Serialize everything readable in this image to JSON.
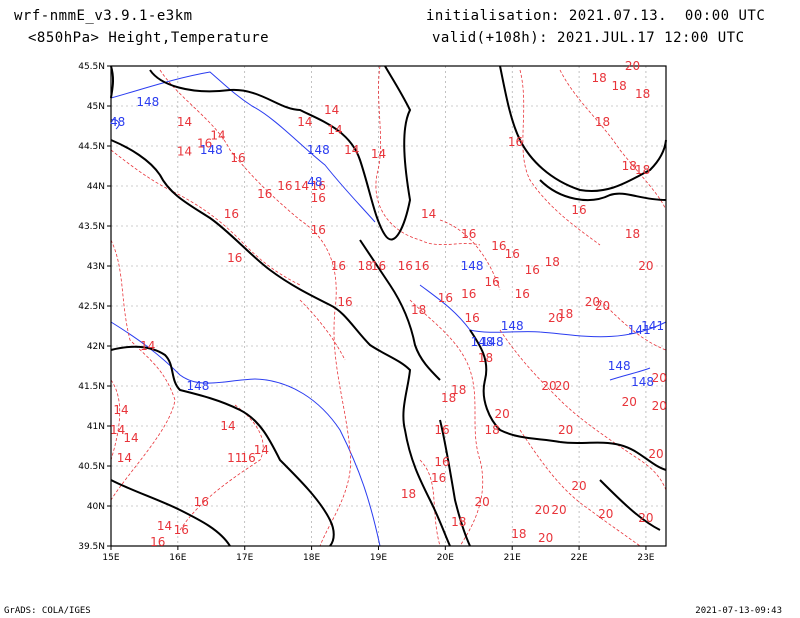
{
  "header": {
    "model": "wrf-nmmE_v3.9.1-e3km",
    "field": "<850hPa> Height,Temperature",
    "init": "initialisation: 2021.07.13.  00:00 UTC",
    "valid": "valid(+108h): 2021.JUL.17 12:00 UTC"
  },
  "footer": {
    "left": "GrADS: COLA/IGES",
    "right": "2021-07-13-09:43"
  },
  "axes": {
    "lat_labels": [
      "45.5N",
      "45N",
      "44.5N",
      "44N",
      "43.5N",
      "43N",
      "42.5N",
      "42N",
      "41.5N",
      "41N",
      "40.5N",
      "40N",
      "39.5N"
    ],
    "lon_labels": [
      "15E",
      "16E",
      "17E",
      "18E",
      "19E",
      "20E",
      "21E",
      "22E",
      "23E"
    ]
  },
  "colors": {
    "temperature": "#e8343a",
    "height": "#2a3cf0",
    "coastline": "#000000",
    "grid": "#9a9a9a"
  },
  "contour_labels": {
    "temperature": [
      {
        "t": "14",
        "lon": 16.1,
        "lat": 44.75
      },
      {
        "t": "14",
        "lon": 16.6,
        "lat": 44.58
      },
      {
        "t": "16",
        "lon": 16.4,
        "lat": 44.48
      },
      {
        "t": "14",
        "lon": 16.1,
        "lat": 44.38
      },
      {
        "t": "14",
        "lon": 17.9,
        "lat": 44.75
      },
      {
        "t": "14",
        "lon": 18.3,
        "lat": 44.9
      },
      {
        "t": "14",
        "lon": 18.35,
        "lat": 44.65
      },
      {
        "t": "16",
        "lon": 16.9,
        "lat": 44.3
      },
      {
        "t": "16",
        "lon": 17.6,
        "lat": 43.95
      },
      {
        "t": "14",
        "lon": 17.85,
        "lat": 43.95
      },
      {
        "t": "16",
        "lon": 18.1,
        "lat": 43.8
      },
      {
        "t": "16",
        "lon": 17.3,
        "lat": 43.85
      },
      {
        "t": "16",
        "lon": 18.1,
        "lat": 43.95
      },
      {
        "t": "14",
        "lon": 18.6,
        "lat": 44.4
      },
      {
        "t": "14",
        "lon": 19.0,
        "lat": 44.35
      },
      {
        "t": "16",
        "lon": 16.8,
        "lat": 43.6
      },
      {
        "t": "16",
        "lon": 18.1,
        "lat": 43.4
      },
      {
        "t": "16",
        "lon": 16.85,
        "lat": 43.05
      },
      {
        "t": "16",
        "lon": 18.4,
        "lat": 42.95
      },
      {
        "t": "18",
        "lon": 18.8,
        "lat": 42.95
      },
      {
        "t": "16",
        "lon": 19.0,
        "lat": 42.95
      },
      {
        "t": "16",
        "lon": 19.4,
        "lat": 42.95
      },
      {
        "t": "16",
        "lon": 19.65,
        "lat": 42.95
      },
      {
        "t": "16",
        "lon": 18.5,
        "lat": 42.5
      },
      {
        "t": "16",
        "lon": 20.0,
        "lat": 42.55
      },
      {
        "t": "16",
        "lon": 20.35,
        "lat": 42.6
      },
      {
        "t": "16",
        "lon": 20.7,
        "lat": 42.75
      },
      {
        "t": "18",
        "lon": 19.6,
        "lat": 42.4
      },
      {
        "t": "16",
        "lon": 20.4,
        "lat": 42.3
      },
      {
        "t": "16",
        "lon": 21.15,
        "lat": 42.6
      },
      {
        "t": "16",
        "lon": 21.3,
        "lat": 42.9
      },
      {
        "t": "16",
        "lon": 20.35,
        "lat": 43.35
      },
      {
        "t": "16",
        "lon": 20.8,
        "lat": 43.2
      },
      {
        "t": "16",
        "lon": 21.0,
        "lat": 43.1
      },
      {
        "t": "14",
        "lon": 19.75,
        "lat": 43.6
      },
      {
        "t": "18",
        "lon": 21.6,
        "lat": 43.0
      },
      {
        "t": "16",
        "lon": 22.0,
        "lat": 43.65
      },
      {
        "t": "18",
        "lon": 22.8,
        "lat": 43.35
      },
      {
        "t": "16",
        "lon": 21.05,
        "lat": 44.5
      },
      {
        "t": "18",
        "lon": 22.35,
        "lat": 44.75
      },
      {
        "t": "18",
        "lon": 22.3,
        "lat": 45.3
      },
      {
        "t": "20",
        "lon": 22.8,
        "lat": 45.45
      },
      {
        "t": "18",
        "lon": 22.6,
        "lat": 45.2
      },
      {
        "t": "18",
        "lon": 22.95,
        "lat": 45.1
      },
      {
        "t": "18",
        "lon": 22.75,
        "lat": 44.2
      },
      {
        "t": "18",
        "lon": 22.95,
        "lat": 44.15
      },
      {
        "t": "20",
        "lon": 23.0,
        "lat": 42.95
      },
      {
        "t": "18",
        "lon": 21.8,
        "lat": 42.35
      },
      {
        "t": "20",
        "lon": 21.65,
        "lat": 42.3
      },
      {
        "t": "20",
        "lon": 22.2,
        "lat": 42.5
      },
      {
        "t": "20",
        "lon": 22.35,
        "lat": 42.45
      },
      {
        "t": "18",
        "lon": 20.6,
        "lat": 41.8
      },
      {
        "t": "20",
        "lon": 21.55,
        "lat": 41.45
      },
      {
        "t": "20",
        "lon": 21.75,
        "lat": 41.45
      },
      {
        "t": "18",
        "lon": 20.2,
        "lat": 41.4
      },
      {
        "t": "18",
        "lon": 20.05,
        "lat": 41.3
      },
      {
        "t": "20",
        "lon": 22.75,
        "lat": 41.25
      },
      {
        "t": "20",
        "lon": 23.2,
        "lat": 41.55
      },
      {
        "t": "20",
        "lon": 23.2,
        "lat": 41.2
      },
      {
        "t": "20",
        "lon": 20.85,
        "lat": 41.1
      },
      {
        "t": "18",
        "lon": 20.7,
        "lat": 40.9
      },
      {
        "t": "16",
        "lon": 19.95,
        "lat": 40.9
      },
      {
        "t": "20",
        "lon": 21.8,
        "lat": 40.9
      },
      {
        "t": "20",
        "lon": 23.15,
        "lat": 40.6
      },
      {
        "t": "16",
        "lon": 19.95,
        "lat": 40.5
      },
      {
        "t": "16",
        "lon": 19.9,
        "lat": 40.3
      },
      {
        "t": "18",
        "lon": 19.45,
        "lat": 40.1
      },
      {
        "t": "20",
        "lon": 20.55,
        "lat": 40.0
      },
      {
        "t": "20",
        "lon": 21.45,
        "lat": 39.9
      },
      {
        "t": "20",
        "lon": 22.0,
        "lat": 40.2
      },
      {
        "t": "20",
        "lon": 21.7,
        "lat": 39.9
      },
      {
        "t": "20",
        "lon": 22.4,
        "lat": 39.85
      },
      {
        "t": "20",
        "lon": 23.0,
        "lat": 39.8
      },
      {
        "t": "18",
        "lon": 20.2,
        "lat": 39.75
      },
      {
        "t": "18",
        "lon": 21.1,
        "lat": 39.6
      },
      {
        "t": "20",
        "lon": 21.5,
        "lat": 39.55
      },
      {
        "t": "14",
        "lon": 15.1,
        "lat": 40.9
      },
      {
        "t": "14",
        "lon": 15.3,
        "lat": 40.8
      },
      {
        "t": "14",
        "lon": 15.2,
        "lat": 40.55
      },
      {
        "t": "14",
        "lon": 15.15,
        "lat": 41.15
      },
      {
        "t": "14",
        "lon": 15.55,
        "lat": 41.95
      },
      {
        "t": "14",
        "lon": 16.75,
        "lat": 40.95
      },
      {
        "t": "14",
        "lon": 17.25,
        "lat": 40.65
      },
      {
        "t": "11",
        "lon": 16.85,
        "lat": 40.55
      },
      {
        "t": "16",
        "lon": 17.05,
        "lat": 40.55
      },
      {
        "t": "16",
        "lon": 16.35,
        "lat": 40.0
      },
      {
        "t": "14",
        "lon": 15.8,
        "lat": 39.7
      },
      {
        "t": "16",
        "lon": 16.05,
        "lat": 39.65
      },
      {
        "t": "16",
        "lon": 15.7,
        "lat": 39.5
      }
    ],
    "height": [
      {
        "t": "148",
        "lon": 15.55,
        "lat": 45.0
      },
      {
        "t": "48",
        "lon": 15.1,
        "lat": 44.75
      },
      {
        "t": "148",
        "lon": 16.5,
        "lat": 44.4
      },
      {
        "t": "148",
        "lon": 18.1,
        "lat": 44.4
      },
      {
        "t": "48",
        "lon": 18.05,
        "lat": 44.0
      },
      {
        "t": "148",
        "lon": 20.4,
        "lat": 42.95
      },
      {
        "t": "148",
        "lon": 21.0,
        "lat": 42.2
      },
      {
        "t": "148",
        "lon": 20.7,
        "lat": 42.0
      },
      {
        "t": "148",
        "lon": 20.55,
        "lat": 42.0
      },
      {
        "t": "148",
        "lon": 16.3,
        "lat": 41.45
      },
      {
        "t": "148",
        "lon": 22.6,
        "lat": 41.7
      },
      {
        "t": "148",
        "lon": 22.95,
        "lat": 41.5
      },
      {
        "t": "141",
        "lon": 22.9,
        "lat": 42.15
      },
      {
        "t": "141",
        "lon": 23.1,
        "lat": 42.2
      }
    ]
  }
}
